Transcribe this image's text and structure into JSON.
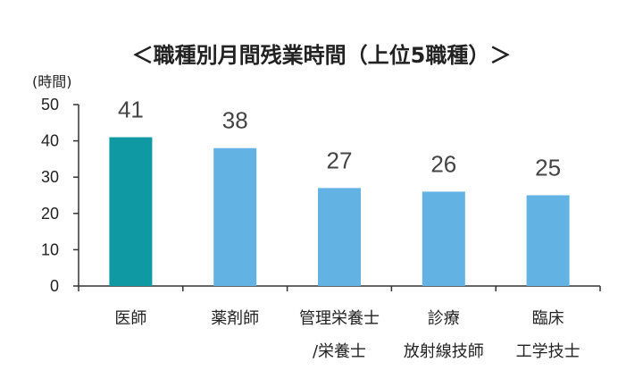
{
  "chart_data": {
    "type": "bar",
    "title": "＜職種別月間残業時間（上位5職種）＞",
    "ylabel": "(時間)",
    "xlabel": "",
    "ylim": [
      0,
      50
    ],
    "yticks": [
      0,
      10,
      20,
      30,
      40,
      50
    ],
    "categories": [
      {
        "lines": [
          "医師"
        ]
      },
      {
        "lines": [
          "薬剤師"
        ]
      },
      {
        "lines": [
          "管理栄養士",
          "/栄養士"
        ]
      },
      {
        "lines": [
          "診療",
          "放射線技師"
        ]
      },
      {
        "lines": [
          "臨床",
          "工学技士"
        ]
      }
    ],
    "values": [
      41,
      38,
      27,
      26,
      25
    ],
    "highlight_index": 0,
    "grid": false,
    "colors": {
      "highlight": "#0f9aa3",
      "bar": "#62b3e3",
      "axis": "#333333"
    }
  }
}
